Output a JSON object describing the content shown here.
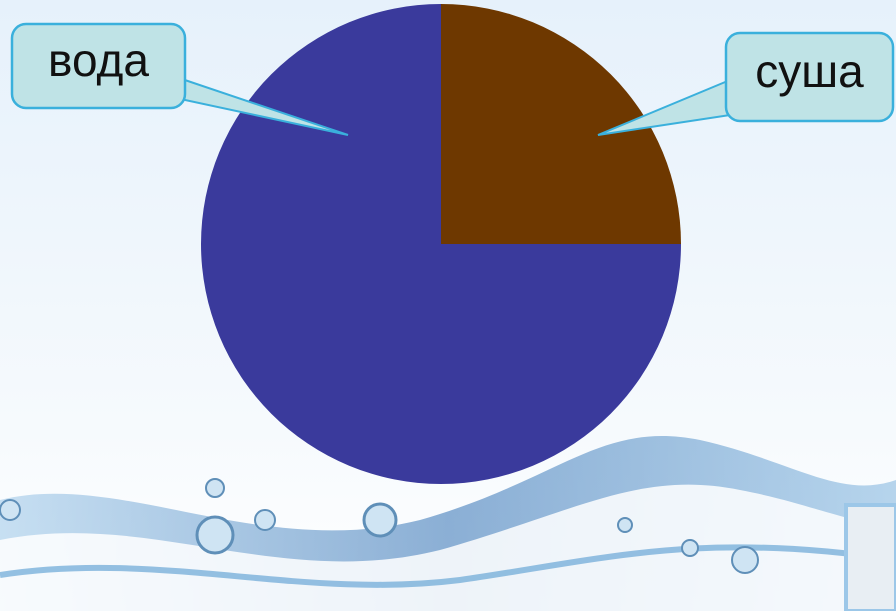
{
  "chart_data": {
    "type": "pie",
    "categories": [
      "суша",
      "вода"
    ],
    "values": [
      25,
      75
    ],
    "colors": [
      "#6e3800",
      "#3a3a9c"
    ]
  }
}
